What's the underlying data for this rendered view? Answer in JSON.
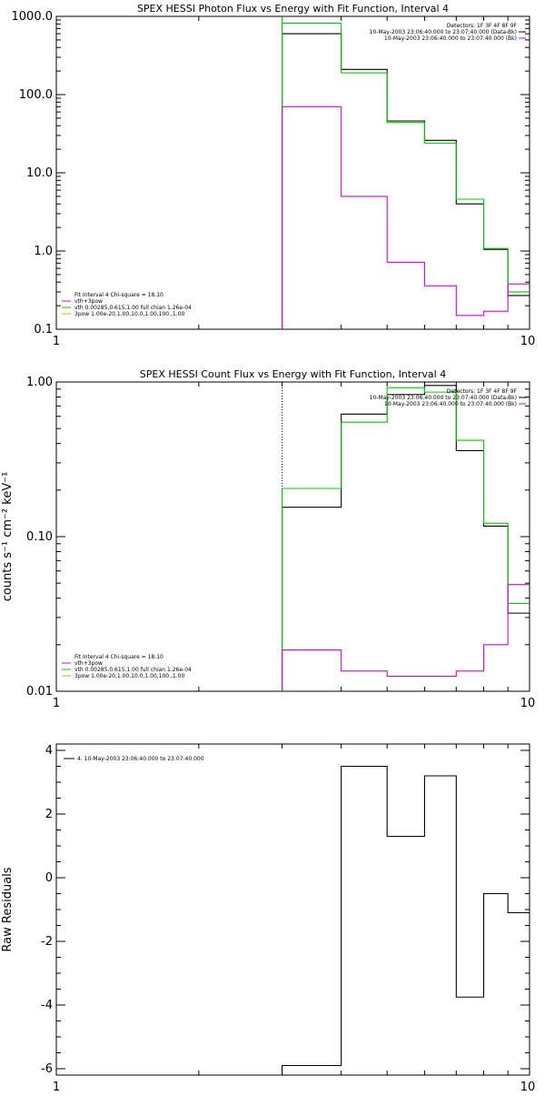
{
  "chart_data": [
    {
      "type": "line",
      "title": "SPEX HESSI Photon Flux vs Energy with Fit Function, Interval 4",
      "ylabel": "",
      "yscale": "log",
      "xscale": "log",
      "ylim": [
        0.1,
        1000
      ],
      "xlim": [
        1,
        10
      ],
      "ytick_labels": [
        "0.1",
        "1.0",
        "10.0",
        "100.0",
        "1000.0"
      ],
      "ytick_values": [
        0.1,
        1,
        10,
        100,
        1000
      ],
      "xtick_labels": [
        "1",
        "10"
      ],
      "xtick_values": [
        1,
        10
      ],
      "marker_x": 3,
      "legend_top": [
        "Detectors: 1F 3F 4F 8F 9F",
        "10-May-2003 23:06:40.000 to 23:07:40.000 (Data-Bk)",
        "10-May-2003 23:06:40.000 to 23:07:40.000 (Bk)"
      ],
      "legend_bottom": [
        "Fit Interval 4   Chi-square = 18.10",
        "vth+3pow",
        "vth 0.00285,0.615,1.00   full chian 1.26e-04",
        "3pow 1.00e-20,1.00,10.0,1.00,100.,1.00"
      ],
      "series": [
        {
          "color": "#000000",
          "edges": [
            3,
            4,
            5,
            6,
            7,
            8,
            9,
            10
          ],
          "values": [
            600,
            210,
            46,
            26,
            4.0,
            1.05,
            0.27
          ]
        },
        {
          "color": "#00cc00",
          "edges": [
            3,
            4,
            5,
            6,
            7,
            8,
            9,
            10
          ],
          "values": [
            820,
            190,
            44,
            24,
            4.6,
            1.08,
            0.3
          ]
        },
        {
          "color": "#dd00dd",
          "edges": [
            3,
            4,
            5,
            6,
            7,
            8,
            9,
            10
          ],
          "values": [
            70,
            5.0,
            0.72,
            0.36,
            0.15,
            0.17,
            0.38
          ]
        }
      ]
    },
    {
      "type": "line",
      "title": "SPEX HESSI Count Flux vs Energy with Fit Function, Interval 4",
      "ylabel": "counts s⁻¹ cm⁻² keV⁻¹",
      "yscale": "log",
      "xscale": "log",
      "ylim": [
        0.01,
        1
      ],
      "xlim": [
        1,
        10
      ],
      "ytick_labels": [
        "0.01",
        "0.10",
        "1.00"
      ],
      "ytick_values": [
        0.01,
        0.1,
        1
      ],
      "xtick_labels": [
        "1",
        "10"
      ],
      "xtick_values": [
        1,
        10
      ],
      "marker_x": 3,
      "legend_top": [
        "Detectors: 1F 3F 4F 8F 9F",
        "10-May-2003 23:06:40.000 to 23:07:40.000 (Data-Bk)",
        "10-May-2003 23:06:40.000 to 23:07:40.000 (Bk)"
      ],
      "legend_bottom": [
        "Fit Interval 4   Chi-square = 18.10",
        "vth+3pow",
        "vth 0.00285,0.615,1.00   full chian 1.26e-04",
        "3pow 1.00e-20,1.00,10.0,1.00,100.,1.00"
      ],
      "series": [
        {
          "color": "#000000",
          "edges": [
            3,
            4,
            5,
            6,
            7,
            8,
            9,
            10
          ],
          "values": [
            0.155,
            0.62,
            0.83,
            0.95,
            0.36,
            0.117,
            0.032
          ]
        },
        {
          "color": "#00cc00",
          "edges": [
            3,
            4,
            5,
            6,
            7,
            8,
            9,
            10
          ],
          "values": [
            0.205,
            0.55,
            0.92,
            0.86,
            0.42,
            0.122,
            0.037
          ]
        },
        {
          "color": "#dd00dd",
          "edges": [
            3,
            4,
            5,
            6,
            7,
            8,
            9,
            10
          ],
          "values": [
            0.0185,
            0.0135,
            0.0125,
            0.0125,
            0.0135,
            0.02,
            0.049
          ]
        }
      ]
    },
    {
      "type": "line",
      "title": "",
      "ylabel": "Raw Residuals",
      "yscale": "linear",
      "xscale": "log",
      "ylim": [
        -6.2,
        4.2
      ],
      "xlim": [
        1,
        10
      ],
      "ytick_labels": [
        "-6",
        "-4",
        "-2",
        "0",
        "2",
        "4"
      ],
      "ytick_values": [
        -6,
        -4,
        -2,
        0,
        2,
        4
      ],
      "xtick_labels": [
        "1",
        "10"
      ],
      "xtick_values": [
        1,
        10
      ],
      "legend_top_left": [
        "4. 10-May-2003 23:06:40.000 to 23:07:40.000"
      ],
      "series": [
        {
          "color": "#000000",
          "edges": [
            3,
            4,
            5,
            6,
            7,
            8,
            9,
            10
          ],
          "values": [
            -5.9,
            3.5,
            1.3,
            3.2,
            -3.75,
            -0.5,
            -1.1
          ]
        }
      ]
    }
  ]
}
